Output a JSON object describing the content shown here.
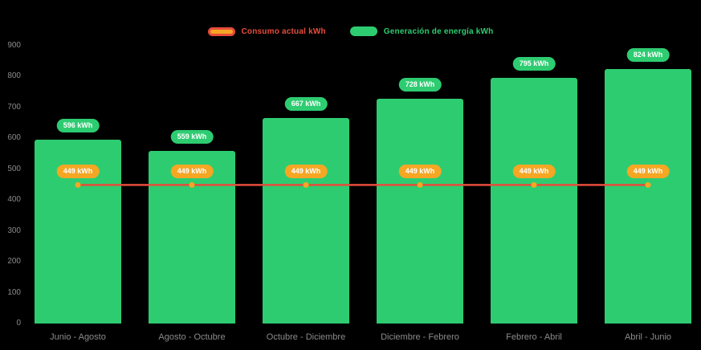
{
  "chart_data": {
    "type": "bar",
    "categories": [
      "Junio - Agosto",
      "Agosto - Octubre",
      "Octubre - Diciembre",
      "Diciembre - Febrero",
      "Febrero - Abril",
      "Abril - Junio"
    ],
    "series": [
      {
        "name": "Consumo actual kWh",
        "type": "line",
        "color": "#e74c3c",
        "marker_color": "#f5a623",
        "values": [
          449,
          449,
          449,
          449,
          449,
          449
        ],
        "labels": [
          "449 kWh",
          "449 kWh",
          "449 kWh",
          "449 kWh",
          "449 kWh",
          "449 kWh"
        ]
      },
      {
        "name": "Generación de energía kWh",
        "type": "bar",
        "color": "#2ecc71",
        "values": [
          596,
          559,
          667,
          728,
          795,
          824
        ],
        "labels": [
          "596 kWh",
          "559 kWh",
          "667 kWh",
          "728 kWh",
          "795 kWh",
          "824 kWh"
        ]
      }
    ],
    "ylim": [
      0,
      900
    ],
    "yticks": [
      0,
      100,
      200,
      300,
      400,
      500,
      600,
      700,
      800,
      900
    ],
    "grid": false,
    "legend_position": "top",
    "background": "#000000",
    "xlabel": "",
    "ylabel": ""
  },
  "legend": {
    "items": [
      {
        "label": "Consumo actual kWh",
        "color": "#e74c3c",
        "swatch_fill": "#f5a623",
        "swatch": "line-marker"
      },
      {
        "label": "Generación de energía kWh",
        "color": "#2ecc71",
        "swatch_fill": "#2ecc71",
        "swatch": "bar"
      }
    ]
  }
}
